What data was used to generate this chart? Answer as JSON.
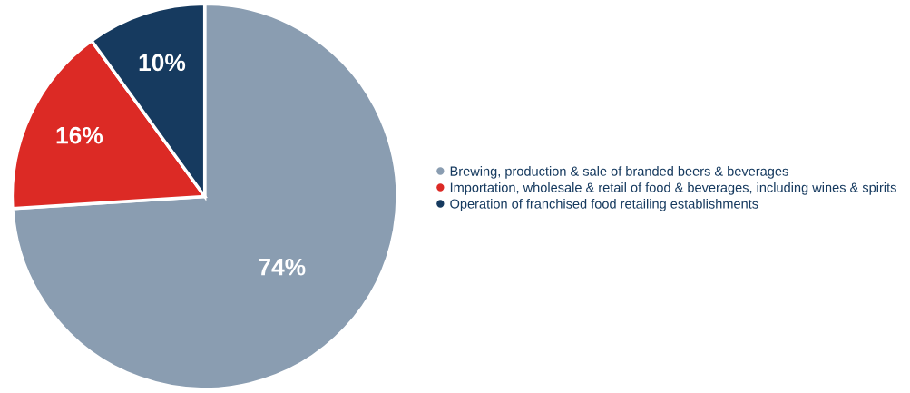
{
  "chart_data": {
    "type": "pie",
    "categories": [
      "Brewing, production & sale of branded beers & beverages",
      "Importation, wholesale & retail of food & beverages, including wines & spirits",
      "Operation of franchised food retailing establishments"
    ],
    "values": [
      74,
      16,
      10
    ],
    "colors": [
      "#8a9db1",
      "#dc2a25",
      "#163a5f"
    ],
    "value_labels": [
      "74%",
      "16%",
      "10%"
    ],
    "legend": "right"
  }
}
